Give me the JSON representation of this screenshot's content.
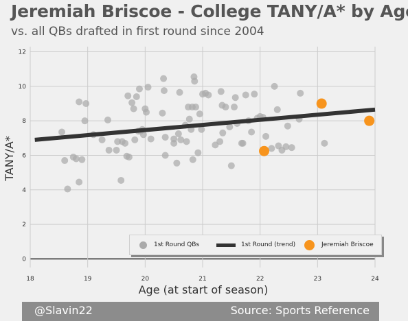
{
  "header": {
    "title": "Jeremiah Briscoe - College TANY/A* by Age",
    "subtitle": "vs. all QBs drafted in first round since 2004"
  },
  "footer": {
    "left": "@Slavin22",
    "right": "Source: Sports Reference"
  },
  "legend": {
    "qbs_label": "1st Round QBs",
    "trend_label": "1st Round (trend)",
    "player_label": "Jeremiah Briscoe"
  },
  "colors": {
    "background": "#f0f0f0",
    "grid": "#cccccc",
    "qb_points": "#aaaaaa",
    "trend": "#333333",
    "player": "#f7941d",
    "footer": "#8c8c8c",
    "text": "#555555"
  },
  "chart_data": {
    "type": "scatter",
    "title": "Jeremiah Briscoe - College TANY/A* by Age",
    "subtitle": "vs. all QBs drafted in first round since 2004",
    "xlabel": "Age (at start of season)",
    "ylabel": "TANY/A*",
    "xlim": [
      18,
      24
    ],
    "ylim": [
      -0.5,
      12.3
    ],
    "xticks": [
      "18",
      "19",
      "20",
      "21",
      "22",
      "23",
      "24"
    ],
    "yticks": [
      "0",
      "2",
      "4",
      "6",
      "8",
      "10",
      "12"
    ],
    "grid": true,
    "legend_position": "lower-right",
    "series": [
      {
        "name": "1st Round QBs",
        "marker": "circle",
        "points": [
          [
            18.55,
            7.35
          ],
          [
            18.6,
            5.7
          ],
          [
            18.65,
            4.05
          ],
          [
            18.75,
            5.9
          ],
          [
            18.8,
            5.8
          ],
          [
            18.85,
            9.1
          ],
          [
            18.85,
            4.45
          ],
          [
            18.9,
            5.75
          ],
          [
            18.95,
            8.0
          ],
          [
            18.97,
            9.0
          ],
          [
            19.1,
            7.2
          ],
          [
            19.25,
            6.9
          ],
          [
            19.35,
            8.05
          ],
          [
            19.37,
            6.3
          ],
          [
            19.5,
            6.3
          ],
          [
            19.52,
            6.8
          ],
          [
            19.58,
            4.55
          ],
          [
            19.6,
            6.8
          ],
          [
            19.65,
            6.7
          ],
          [
            19.68,
            5.95
          ],
          [
            19.7,
            9.45
          ],
          [
            19.72,
            5.9
          ],
          [
            19.77,
            9.05
          ],
          [
            19.8,
            8.7
          ],
          [
            19.82,
            6.9
          ],
          [
            19.85,
            9.4
          ],
          [
            19.88,
            7.4
          ],
          [
            19.9,
            9.85
          ],
          [
            19.92,
            7.4
          ],
          [
            19.95,
            7.5
          ],
          [
            19.97,
            7.2
          ],
          [
            20.0,
            8.7
          ],
          [
            20.02,
            8.5
          ],
          [
            20.05,
            9.95
          ],
          [
            20.1,
            6.95
          ],
          [
            20.3,
            8.45
          ],
          [
            20.32,
            10.45
          ],
          [
            20.33,
            9.75
          ],
          [
            20.35,
            7.05
          ],
          [
            20.35,
            6.0
          ],
          [
            20.5,
            6.7
          ],
          [
            20.55,
            5.55
          ],
          [
            20.58,
            7.25
          ],
          [
            20.6,
            9.65
          ],
          [
            20.62,
            6.9
          ],
          [
            20.7,
            7.75
          ],
          [
            20.72,
            6.8
          ],
          [
            20.75,
            8.8
          ],
          [
            20.77,
            8.1
          ],
          [
            20.8,
            7.5
          ],
          [
            20.82,
            8.8
          ],
          [
            20.83,
            5.75
          ],
          [
            20.85,
            10.55
          ],
          [
            20.86,
            10.3
          ],
          [
            20.88,
            8.8
          ],
          [
            20.92,
            6.15
          ],
          [
            20.95,
            8.4
          ],
          [
            20.98,
            7.5
          ],
          [
            21.0,
            9.55
          ],
          [
            21.05,
            9.6
          ],
          [
            21.1,
            9.5
          ],
          [
            21.22,
            6.6
          ],
          [
            21.3,
            6.8
          ],
          [
            21.32,
            9.7
          ],
          [
            21.34,
            8.9
          ],
          [
            21.35,
            7.3
          ],
          [
            21.4,
            8.8
          ],
          [
            21.47,
            7.65
          ],
          [
            21.5,
            5.4
          ],
          [
            21.55,
            8.8
          ],
          [
            21.57,
            9.35
          ],
          [
            21.6,
            7.85
          ],
          [
            21.68,
            6.7
          ],
          [
            21.7,
            6.7
          ],
          [
            21.75,
            9.5
          ],
          [
            21.8,
            8.0
          ],
          [
            21.85,
            7.35
          ],
          [
            21.9,
            9.55
          ],
          [
            21.95,
            8.15
          ],
          [
            22.0,
            8.25
          ],
          [
            22.05,
            8.2
          ],
          [
            22.1,
            7.1
          ],
          [
            22.2,
            6.4
          ],
          [
            22.25,
            10.0
          ],
          [
            22.3,
            8.65
          ],
          [
            22.32,
            6.55
          ],
          [
            22.38,
            6.3
          ],
          [
            22.45,
            6.5
          ],
          [
            22.48,
            7.7
          ],
          [
            22.55,
            6.45
          ],
          [
            22.68,
            8.1
          ],
          [
            22.7,
            9.6
          ],
          [
            23.12,
            6.7
          ],
          [
            20.5,
            6.95
          ]
        ]
      },
      {
        "name": "1st Round (trend)",
        "type": "line",
        "points": [
          [
            18.08,
            6.9
          ],
          [
            24.0,
            8.65
          ]
        ]
      },
      {
        "name": "Jeremiah Briscoe",
        "marker": "circle",
        "points": [
          [
            22.07,
            6.25
          ],
          [
            23.07,
            9.0
          ],
          [
            23.9,
            8.0
          ]
        ]
      }
    ]
  }
}
